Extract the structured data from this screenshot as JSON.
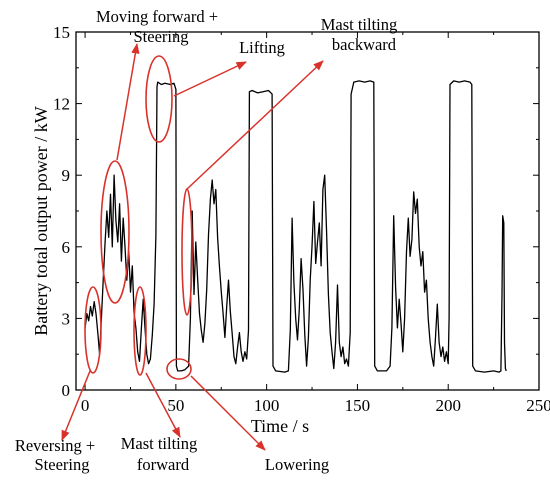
{
  "chart_data": {
    "type": "line",
    "xlabel": "Time / s",
    "ylabel": "Battery total output power / kW",
    "xlim": [
      -5,
      250
    ],
    "ylim": [
      0,
      15
    ],
    "xticks": [
      "0",
      "50",
      "100",
      "150",
      "200",
      "250"
    ],
    "yticks": [
      "0",
      "3",
      "6",
      "9",
      "12",
      "15"
    ],
    "grid": false,
    "series": [
      {
        "color": "#000000",
        "points": [
          [
            0,
            2.6
          ],
          [
            1,
            3.2
          ],
          [
            2,
            2.9
          ],
          [
            3,
            3.5
          ],
          [
            4,
            3.1
          ],
          [
            5,
            3.7
          ],
          [
            6,
            3.2
          ],
          [
            7,
            2.4
          ],
          [
            8,
            1.5
          ],
          [
            9,
            3.0
          ],
          [
            10,
            4.6
          ],
          [
            11,
            6.2
          ],
          [
            12,
            7.5
          ],
          [
            13,
            6.4
          ],
          [
            14,
            8.2
          ],
          [
            15,
            6.0
          ],
          [
            16,
            9.0
          ],
          [
            17,
            7.1
          ],
          [
            18,
            6.2
          ],
          [
            19,
            7.8
          ],
          [
            20,
            5.4
          ],
          [
            21,
            7.2
          ],
          [
            22,
            6.0
          ],
          [
            23,
            4.6
          ],
          [
            24,
            5.8
          ],
          [
            25,
            4.1
          ],
          [
            26,
            5.2
          ],
          [
            27,
            3.2
          ],
          [
            28,
            2.6
          ],
          [
            29,
            1.6
          ],
          [
            30,
            1.2
          ],
          [
            31,
            2.6
          ],
          [
            32,
            3.8
          ],
          [
            33,
            2.6
          ],
          [
            34,
            1.5
          ],
          [
            35,
            1.1
          ],
          [
            36,
            1.3
          ],
          [
            37,
            2.3
          ],
          [
            38,
            3.6
          ],
          [
            39,
            6.5
          ],
          [
            39.6,
            12.7
          ],
          [
            40,
            12.9
          ],
          [
            42,
            12.8
          ],
          [
            44,
            12.85
          ],
          [
            47,
            12.8
          ],
          [
            49,
            12.85
          ],
          [
            50,
            12.6
          ],
          [
            50.3,
            1.0
          ],
          [
            51,
            0.8
          ],
          [
            53,
            0.8
          ],
          [
            55,
            0.85
          ],
          [
            57,
            1.0
          ],
          [
            58,
            3.0
          ],
          [
            59,
            7.5
          ],
          [
            60,
            4.0
          ],
          [
            61,
            6.2
          ],
          [
            62,
            4.6
          ],
          [
            63,
            3.2
          ],
          [
            64,
            2.5
          ],
          [
            65,
            2.0
          ],
          [
            66,
            2.8
          ],
          [
            67,
            4.2
          ],
          [
            68,
            6.5
          ],
          [
            69,
            8.0
          ],
          [
            70,
            8.8
          ],
          [
            71,
            7.8
          ],
          [
            72,
            8.4
          ],
          [
            73,
            6.4
          ],
          [
            74,
            5.2
          ],
          [
            75,
            4.1
          ],
          [
            76,
            3.2
          ],
          [
            77,
            2.2
          ],
          [
            78,
            3.5
          ],
          [
            79,
            4.6
          ],
          [
            80,
            3.3
          ],
          [
            81,
            2.4
          ],
          [
            82,
            1.4
          ],
          [
            83,
            1.1
          ],
          [
            84,
            1.8
          ],
          [
            85,
            2.4
          ],
          [
            86,
            1.6
          ],
          [
            87,
            1.2
          ],
          [
            88,
            1.6
          ],
          [
            89,
            1.3
          ],
          [
            90,
            2.5
          ],
          [
            90.5,
            12.5
          ],
          [
            92,
            12.55
          ],
          [
            95,
            12.45
          ],
          [
            98,
            12.5
          ],
          [
            101,
            12.55
          ],
          [
            103,
            12.4
          ],
          [
            103.5,
            1.0
          ],
          [
            105,
            0.8
          ],
          [
            110,
            0.75
          ],
          [
            112,
            0.8
          ],
          [
            113,
            2.5
          ],
          [
            114,
            7.2
          ],
          [
            115,
            4.5
          ],
          [
            116,
            3.0
          ],
          [
            117,
            2.1
          ],
          [
            118,
            3.4
          ],
          [
            119,
            5.5
          ],
          [
            120,
            4.2
          ],
          [
            121,
            2.3
          ],
          [
            122,
            1.0
          ],
          [
            123,
            2.2
          ],
          [
            124,
            4.6
          ],
          [
            125,
            6.0
          ],
          [
            126,
            7.9
          ],
          [
            127,
            5.3
          ],
          [
            128,
            6.2
          ],
          [
            129,
            7.0
          ],
          [
            130,
            5.2
          ],
          [
            131,
            8.4
          ],
          [
            132,
            9.0
          ],
          [
            133,
            6.6
          ],
          [
            134,
            4.0
          ],
          [
            135,
            2.4
          ],
          [
            136,
            1.6
          ],
          [
            137,
            0.9
          ],
          [
            138,
            2.0
          ],
          [
            139,
            4.4
          ],
          [
            140,
            2.0
          ],
          [
            141,
            1.4
          ],
          [
            142,
            1.8
          ],
          [
            143,
            1.1
          ],
          [
            144,
            1.3
          ],
          [
            145,
            1.0
          ],
          [
            146,
            2.4
          ],
          [
            146.5,
            12.4
          ],
          [
            148,
            12.9
          ],
          [
            151,
            12.95
          ],
          [
            154,
            12.9
          ],
          [
            157,
            12.95
          ],
          [
            159,
            12.9
          ],
          [
            159.5,
            1.0
          ],
          [
            161,
            0.8
          ],
          [
            166,
            0.8
          ],
          [
            168,
            1.0
          ],
          [
            169,
            2.6
          ],
          [
            170,
            7.3
          ],
          [
            171,
            4.3
          ],
          [
            172,
            2.6
          ],
          [
            173,
            3.8
          ],
          [
            174,
            2.8
          ],
          [
            175,
            1.6
          ],
          [
            176,
            3.0
          ],
          [
            177,
            5.8
          ],
          [
            178,
            7.2
          ],
          [
            179,
            5.6
          ],
          [
            180,
            6.3
          ],
          [
            181,
            8.3
          ],
          [
            182,
            7.4
          ],
          [
            183,
            8.0
          ],
          [
            184,
            6.0
          ],
          [
            185,
            5.2
          ],
          [
            186,
            5.8
          ],
          [
            187,
            4.1
          ],
          [
            188,
            4.6
          ],
          [
            189,
            3.0
          ],
          [
            190,
            2.0
          ],
          [
            191,
            1.4
          ],
          [
            192,
            1.0
          ],
          [
            193,
            2.2
          ],
          [
            194,
            3.6
          ],
          [
            195,
            2.0
          ],
          [
            196,
            1.4
          ],
          [
            197,
            1.8
          ],
          [
            198,
            1.2
          ],
          [
            199,
            1.6
          ],
          [
            200,
            1.1
          ],
          [
            200.5,
            3.0
          ],
          [
            201,
            12.8
          ],
          [
            203,
            12.95
          ],
          [
            206,
            12.9
          ],
          [
            209,
            12.95
          ],
          [
            212,
            12.9
          ],
          [
            213,
            12.8
          ],
          [
            213.5,
            1.0
          ],
          [
            215,
            0.8
          ],
          [
            220,
            0.75
          ],
          [
            225,
            0.8
          ],
          [
            228,
            0.75
          ],
          [
            229,
            0.8
          ],
          [
            229.6,
            4.0
          ],
          [
            230,
            7.3
          ],
          [
            230.6,
            7.0
          ],
          [
            231,
            2.0
          ],
          [
            231.5,
            0.9
          ],
          [
            232,
            0.8
          ]
        ]
      }
    ],
    "annotations": [
      {
        "id": "reversing",
        "lines": [
          "Reversing +",
          "Steering"
        ]
      },
      {
        "id": "forward",
        "lines": [
          "Moving forward +",
          "Steering"
        ]
      },
      {
        "id": "lifting",
        "lines": [
          "Lifting"
        ]
      },
      {
        "id": "tilt-back",
        "lines": [
          "Mast tilting",
          "backward"
        ]
      },
      {
        "id": "tilt-forward",
        "lines": [
          "Mast tilting",
          "forward"
        ]
      },
      {
        "id": "lowering",
        "lines": [
          "Lowering"
        ]
      }
    ],
    "annotation_color": "#d9322b"
  }
}
